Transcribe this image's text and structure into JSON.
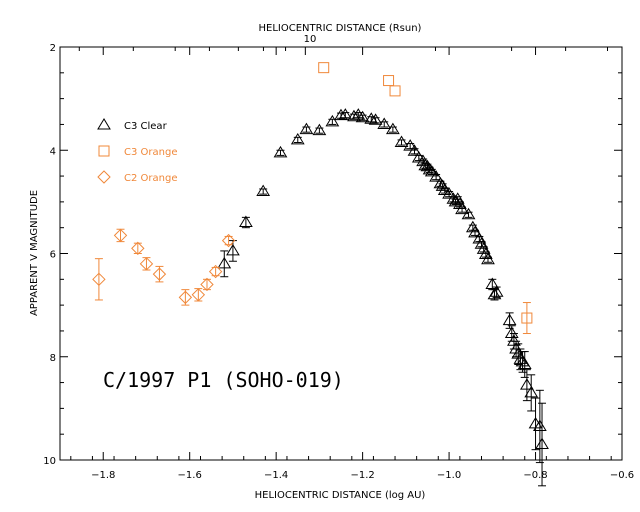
{
  "chart_data": {
    "type": "scatter",
    "title": "C/1997 P1 (SOHO-019)",
    "xlabel": "HELIOCENTRIC DISTANCE (log AU)",
    "ylabel": "APPARENT V MAGNITUDE",
    "top_xlabel": "HELIOCENTRIC DISTANCE (Rsun)",
    "top_tick_label": "10",
    "xlim": [
      -1.9,
      -0.6
    ],
    "ylim": [
      10,
      2
    ],
    "x_ticks": [
      -1.8,
      -1.6,
      -1.4,
      -1.2,
      -1.0,
      -0.8,
      -0.6
    ],
    "x_tick_labels": [
      "−1.8",
      "−1.6",
      "−1.4",
      "−1.2",
      "−1.0",
      "−0.8",
      "−0.6"
    ],
    "y_ticks": [
      2,
      4,
      6,
      8,
      10
    ],
    "y_tick_labels": [
      "2",
      "4",
      "6",
      "8",
      "10"
    ],
    "grid": false,
    "legend_position": "top-left",
    "series": [
      {
        "name": "C3 Clear",
        "marker": "triangle",
        "color": "#000000",
        "points": [
          [
            -1.52,
            6.2,
            0.25
          ],
          [
            -1.5,
            5.95,
            0.2
          ],
          [
            -1.47,
            5.4,
            0.1
          ],
          [
            -1.43,
            4.8,
            0.05
          ],
          [
            -1.39,
            4.05,
            0.05
          ],
          [
            -1.35,
            3.8,
            0.05
          ],
          [
            -1.33,
            3.6,
            0.05
          ],
          [
            -1.3,
            3.62,
            0.05
          ],
          [
            -1.27,
            3.45,
            0.05
          ],
          [
            -1.25,
            3.33,
            0.05
          ],
          [
            -1.24,
            3.32,
            0.05
          ],
          [
            -1.22,
            3.35,
            0.05
          ],
          [
            -1.21,
            3.32,
            0.05
          ],
          [
            -1.2,
            3.37,
            0.05
          ],
          [
            -1.18,
            3.4,
            0.05
          ],
          [
            -1.17,
            3.42,
            0.05
          ],
          [
            -1.15,
            3.5,
            0.05
          ],
          [
            -1.13,
            3.6,
            0.05
          ],
          [
            -1.11,
            3.85,
            0.05
          ],
          [
            -1.09,
            3.92,
            0.05
          ],
          [
            -1.08,
            4.02,
            0.05
          ],
          [
            -1.07,
            4.15,
            0.05
          ],
          [
            -1.06,
            4.22,
            0.05
          ],
          [
            -1.055,
            4.3,
            0.05
          ],
          [
            -1.05,
            4.32,
            0.05
          ],
          [
            -1.045,
            4.38,
            0.05
          ],
          [
            -1.04,
            4.42,
            0.05
          ],
          [
            -1.03,
            4.52,
            0.05
          ],
          [
            -1.02,
            4.65,
            0.05
          ],
          [
            -1.015,
            4.7,
            0.05
          ],
          [
            -1.01,
            4.78,
            0.05
          ],
          [
            -1.0,
            4.85,
            0.05
          ],
          [
            -0.99,
            4.95,
            0.05
          ],
          [
            -0.985,
            5.0,
            0.05
          ],
          [
            -0.98,
            4.95,
            0.05
          ],
          [
            -0.975,
            5.05,
            0.05
          ],
          [
            -0.97,
            5.15,
            0.05
          ],
          [
            -0.955,
            5.25,
            0.05
          ],
          [
            -0.945,
            5.5,
            0.05
          ],
          [
            -0.94,
            5.6,
            0.05
          ],
          [
            -0.93,
            5.72,
            0.05
          ],
          [
            -0.925,
            5.82,
            0.05
          ],
          [
            -0.92,
            5.92,
            0.05
          ],
          [
            -0.915,
            6.02,
            0.05
          ],
          [
            -0.91,
            6.12,
            0.05
          ],
          [
            -0.9,
            6.6,
            0.1
          ],
          [
            -0.895,
            6.8,
            0.1
          ],
          [
            -0.89,
            6.75,
            0.1
          ],
          [
            -0.86,
            7.3,
            0.15
          ],
          [
            -0.855,
            7.55,
            0.15
          ],
          [
            -0.85,
            7.7,
            0.15
          ],
          [
            -0.845,
            7.85,
            0.15
          ],
          [
            -0.84,
            7.95,
            0.2
          ],
          [
            -0.835,
            8.05,
            0.2
          ],
          [
            -0.83,
            8.1,
            0.2
          ],
          [
            -0.825,
            8.15,
            0.25
          ],
          [
            -0.82,
            8.55,
            0.3
          ],
          [
            -0.81,
            8.7,
            0.35
          ],
          [
            -0.8,
            9.3,
            0.5
          ],
          [
            -0.79,
            9.35,
            0.7
          ],
          [
            -0.785,
            9.7,
            0.8
          ]
        ]
      },
      {
        "name": "C3 Orange",
        "marker": "square",
        "color": "#f0883a",
        "points": [
          [
            -1.29,
            2.4,
            0.0
          ],
          [
            -1.14,
            2.65,
            0.0
          ],
          [
            -1.125,
            2.85,
            0.0
          ],
          [
            -0.82,
            7.25,
            0.3
          ]
        ]
      },
      {
        "name": "C2 Orange",
        "marker": "diamond",
        "color": "#f0883a",
        "points": [
          [
            -1.81,
            6.5,
            0.4
          ],
          [
            -1.76,
            5.65,
            0.12
          ],
          [
            -1.72,
            5.9,
            0.1
          ],
          [
            -1.7,
            6.2,
            0.12
          ],
          [
            -1.67,
            6.4,
            0.15
          ],
          [
            -1.61,
            6.85,
            0.15
          ],
          [
            -1.58,
            6.8,
            0.12
          ],
          [
            -1.56,
            6.6,
            0.1
          ],
          [
            -1.54,
            6.35,
            0.08
          ],
          [
            -1.51,
            5.75,
            0.08
          ]
        ]
      }
    ]
  }
}
